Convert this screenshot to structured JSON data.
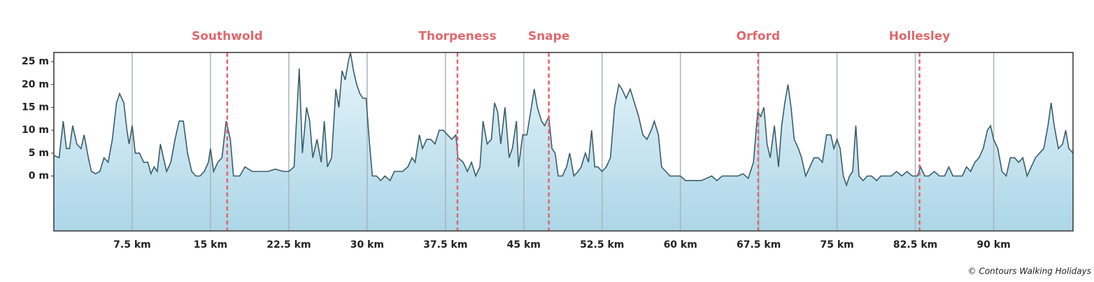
{
  "chart_data": {
    "type": "area",
    "color": "#3a5d68",
    "fill_top": "#e8f5fb",
    "fill_bottom": "#acd6e7",
    "xgrid": true,
    "annotation_color": "#e0686c",
    "xlim": [
      0,
      97.6
    ],
    "ylim": [
      -12,
      27
    ],
    "yticks": [
      {
        "value": 0,
        "label": "0 m"
      },
      {
        "value": 5,
        "label": "5 m"
      },
      {
        "value": 10,
        "label": "10 m"
      },
      {
        "value": 15,
        "label": "15 m"
      },
      {
        "value": 20,
        "label": "20 m"
      },
      {
        "value": 25,
        "label": "25 m"
      }
    ],
    "xticks": [
      {
        "value": 7.5,
        "label": "7.5 km"
      },
      {
        "value": 15,
        "label": "15 km"
      },
      {
        "value": 22.5,
        "label": "22.5 km"
      },
      {
        "value": 30,
        "label": "30 km"
      },
      {
        "value": 37.5,
        "label": "37.5 km"
      },
      {
        "value": 45,
        "label": "45 km"
      },
      {
        "value": 52.5,
        "label": "52.5 km"
      },
      {
        "value": 60,
        "label": "60 km"
      },
      {
        "value": 67.5,
        "label": "67.5 km"
      },
      {
        "value": 75,
        "label": "75 km"
      },
      {
        "value": 82.5,
        "label": "82.5 km"
      },
      {
        "value": 90,
        "label": "90 km"
      }
    ],
    "annotations": [
      {
        "label": "Southwold",
        "x": 16.6
      },
      {
        "label": "Thorpeness",
        "x": 38.65
      },
      {
        "label": "Snape",
        "x": 47.4
      },
      {
        "label": "Orford",
        "x": 67.45
      },
      {
        "label": "Hollesley",
        "x": 82.9
      }
    ],
    "credit": "© Contours Walking Holidays",
    "x": [
      0,
      0.5,
      0.9,
      1.2,
      1.5,
      1.8,
      2.2,
      2.6,
      2.9,
      3.3,
      3.6,
      4.0,
      4.4,
      4.8,
      5.2,
      5.6,
      6.0,
      6.3,
      6.7,
      7.0,
      7.2,
      7.5,
      7.8,
      8.2,
      8.6,
      9.0,
      9.3,
      9.6,
      9.9,
      10.2,
      10.5,
      10.8,
      11.2,
      11.6,
      12.0,
      12.4,
      12.8,
      13.2,
      13.6,
      14.0,
      14.4,
      14.8,
      15.0,
      15.3,
      15.7,
      16.1,
      16.5,
      16.9,
      17.2,
      17.8,
      18.3,
      19.0,
      19.8,
      20.5,
      21.2,
      22.0,
      22.5,
      23.0,
      23.5,
      23.8,
      24.2,
      24.5,
      24.8,
      25.2,
      25.6,
      25.9,
      26.2,
      26.6,
      27.0,
      27.3,
      27.6,
      27.9,
      28.2,
      28.4,
      28.7,
      29.0,
      29.3,
      29.6,
      29.9,
      30.2,
      30.5,
      30.9,
      31.3,
      31.7,
      32.2,
      32.6,
      33.0,
      33.4,
      33.9,
      34.3,
      34.6,
      35.0,
      35.3,
      35.7,
      36.1,
      36.5,
      36.9,
      37.3,
      37.7,
      38.1,
      38.5,
      38.7,
      39.2,
      39.6,
      40.0,
      40.4,
      40.8,
      41.1,
      41.5,
      41.9,
      42.2,
      42.5,
      42.8,
      43.2,
      43.6,
      43.9,
      44.3,
      44.5,
      44.9,
      45.3,
      45.8,
      46.0,
      46.3,
      46.7,
      47.0,
      47.4,
      47.7,
      48.0,
      48.3,
      48.7,
      49.1,
      49.4,
      49.8,
      50.2,
      50.5,
      50.9,
      51.2,
      51.5,
      51.8,
      52.1,
      52.5,
      52.9,
      53.3,
      53.7,
      54.1,
      54.4,
      54.8,
      55.2,
      55.6,
      56.0,
      56.4,
      56.8,
      57.2,
      57.5,
      57.9,
      58.2,
      58.6,
      59.0,
      59.5,
      60.0,
      60.5,
      61.0,
      61.5,
      62.0,
      62.5,
      63.0,
      63.5,
      64.0,
      64.5,
      65.0,
      65.5,
      66.0,
      66.5,
      67.0,
      67.4,
      67.7,
      68.0,
      68.3,
      68.6,
      69.0,
      69.4,
      69.7,
      70.0,
      70.3,
      70.6,
      70.9,
      71.3,
      71.6,
      72.0,
      72.4,
      72.8,
      73.2,
      73.6,
      74.0,
      74.4,
      74.7,
      75.0,
      75.3,
      75.6,
      75.9,
      76.2,
      76.5,
      76.8,
      77.1,
      77.5,
      77.9,
      78.3,
      78.8,
      79.2,
      79.7,
      80.2,
      80.7,
      81.2,
      81.7,
      82.2,
      82.7,
      83.0,
      83.4,
      83.8,
      84.3,
      84.8,
      85.3,
      85.7,
      86.1,
      86.6,
      87.0,
      87.4,
      87.8,
      88.2,
      88.6,
      89.0,
      89.4,
      89.7,
      90.0,
      90.4,
      90.8,
      91.2,
      91.6,
      92.0,
      92.4,
      92.8,
      93.2,
      93.6,
      94.0,
      94.4,
      94.8,
      95.2,
      95.5,
      95.8,
      96.2,
      96.6,
      96.9,
      97.2,
      97.6
    ],
    "values": [
      4.5,
      4,
      12,
      6,
      6,
      11,
      7,
      6,
      9,
      4,
      1,
      0.5,
      1,
      4,
      3,
      8,
      16,
      18,
      16,
      10,
      7,
      11,
      5,
      5,
      3,
      3,
      0.5,
      2,
      1,
      7,
      4,
      1,
      3,
      8,
      12,
      12,
      5,
      1,
      0,
      0,
      1,
      3,
      6,
      1,
      3,
      4,
      12,
      8,
      0,
      0,
      2,
      1,
      1,
      1,
      1.5,
      1,
      1,
      2,
      23.5,
      5,
      15,
      12,
      4,
      8,
      3,
      12,
      2,
      4,
      19,
      15,
      23,
      21,
      25,
      27,
      23,
      20,
      18,
      17,
      17,
      8,
      0,
      0,
      -1,
      0,
      -1,
      1,
      1,
      1,
      2,
      4,
      3,
      9,
      6,
      8,
      8,
      7,
      10,
      10,
      9,
      8,
      9,
      4,
      3,
      1,
      3,
      0,
      2,
      12,
      7,
      8,
      16,
      14,
      7,
      15,
      4,
      6,
      12,
      2,
      9,
      9,
      16,
      19,
      15,
      12,
      11,
      13,
      6,
      5,
      0,
      0,
      2,
      5,
      0,
      1,
      2,
      5,
      3,
      10,
      2,
      2,
      1,
      2,
      4,
      15,
      20,
      19,
      17,
      19,
      16,
      13,
      9,
      8,
      10,
      12,
      9,
      2,
      1,
      0,
      0,
      0,
      -1,
      -1,
      -1,
      -1,
      -0.5,
      0,
      -1,
      0,
      0,
      0,
      0,
      0.5,
      -0.5,
      3,
      14,
      13,
      15,
      7,
      4,
      11,
      2,
      11,
      16,
      20,
      15,
      8,
      6,
      4,
      0,
      2,
      4,
      4,
      3,
      9,
      9,
      6,
      8,
      6,
      0,
      -2,
      0,
      1,
      11,
      0,
      -1,
      0,
      0,
      -1,
      0,
      0,
      0,
      1,
      0,
      1,
      0,
      0,
      2,
      0,
      0,
      1,
      0,
      0,
      2,
      0,
      0,
      0,
      2,
      1,
      3,
      4,
      6,
      10,
      11,
      8,
      6,
      1,
      0,
      4,
      4,
      3,
      4,
      0,
      2,
      4,
      5,
      6,
      11,
      16,
      11,
      6,
      7,
      10,
      6,
      5
    ]
  }
}
